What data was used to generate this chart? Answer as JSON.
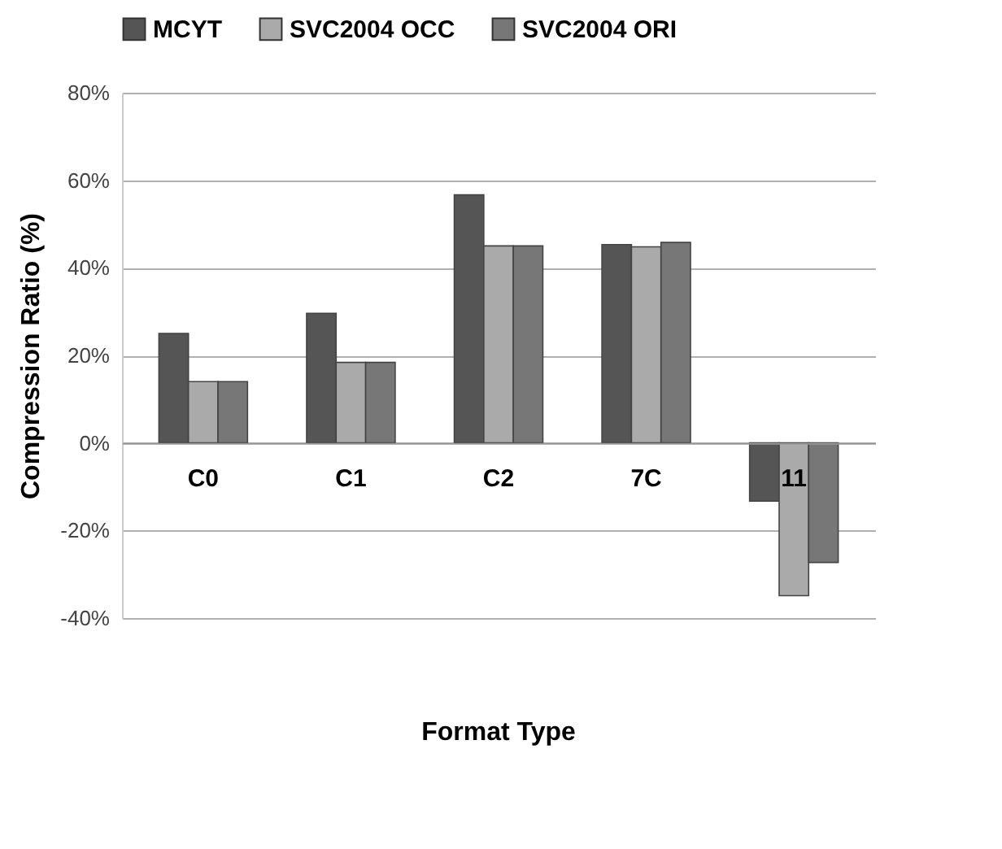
{
  "chart_data": {
    "type": "bar",
    "xlabel": "Format Type",
    "ylabel": "Compression Ratio (%)",
    "categories": [
      "C0",
      "C1",
      "C2",
      "7C",
      "11"
    ],
    "series": [
      {
        "name": "MCYT",
        "color": "#555555",
        "values": [
          25,
          29.6,
          56.7,
          45.3,
          -13.3
        ]
      },
      {
        "name": "SVC2004 OCC",
        "color": "#aaaaaa",
        "values": [
          14,
          18.4,
          45,
          44.8,
          -34.9
        ]
      },
      {
        "name": "SVC2004 ORI",
        "color": "#777777",
        "values": [
          14,
          18.4,
          45,
          45.8,
          -27.3
        ]
      }
    ],
    "ylim": [
      -40,
      80
    ],
    "yticks": [
      {
        "value": -40,
        "label": "-40%"
      },
      {
        "value": -20,
        "label": "-20%"
      },
      {
        "value": 0,
        "label": "0%"
      },
      {
        "value": 20,
        "label": "20%"
      },
      {
        "value": 40,
        "label": "40%"
      },
      {
        "value": 60,
        "label": "60%"
      },
      {
        "value": 80,
        "label": "80%"
      }
    ],
    "grid": "y",
    "legend": "top"
  }
}
